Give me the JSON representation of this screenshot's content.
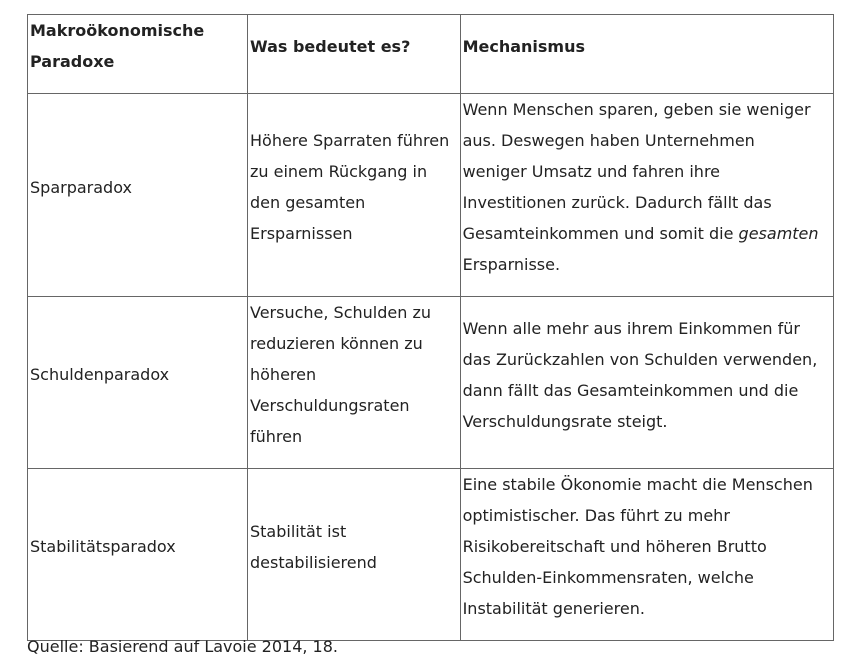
{
  "table": {
    "headers": [
      [
        "Makroökonomische",
        "Paradoxe"
      ],
      [
        "Was bedeutet es?"
      ],
      [
        "Mechanismus"
      ]
    ],
    "rows": [
      {
        "name": [
          "Sparparadox"
        ],
        "meaning": [
          "Höhere Sparraten führen",
          "zu einem Rückgang in",
          "den gesamten",
          "Ersparnissen"
        ],
        "mechanism": [
          "Wenn Menschen sparen, geben sie weniger",
          "aus. Deswegen haben Unternehmen",
          "weniger Umsatz und fahren ihre",
          "Investitionen zurück. Dadurch fällt das",
          "Gesamteinkommen und somit die ",
          "gesamten",
          "Ersparnisse."
        ]
      },
      {
        "name": [
          "Schuldenparadox"
        ],
        "meaning": [
          "Versuche, Schulden zu",
          "reduzieren können zu",
          "höheren",
          "Verschuldungsraten",
          "führen"
        ],
        "mechanism": [
          "Wenn alle mehr aus ihrem Einkommen für",
          "das Zurückzahlen von Schulden verwenden,",
          "dann fällt das Gesamteinkommen und die",
          "Verschuldungsrate steigt."
        ]
      },
      {
        "name": [
          "Stabilitätsparadox"
        ],
        "meaning": [
          "Stabilität ist",
          "destabilisierend"
        ],
        "mechanism": [
          "Eine stabile Ökonomie macht die Menschen",
          "optimistischer. Das führt zu mehr",
          "Risikobereitschaft und höheren Brutto",
          "Schulden-Einkommensraten, welche",
          "Instabilität generieren."
        ]
      }
    ]
  },
  "source": "Quelle: Basierend auf Lavoie 2014, 18."
}
